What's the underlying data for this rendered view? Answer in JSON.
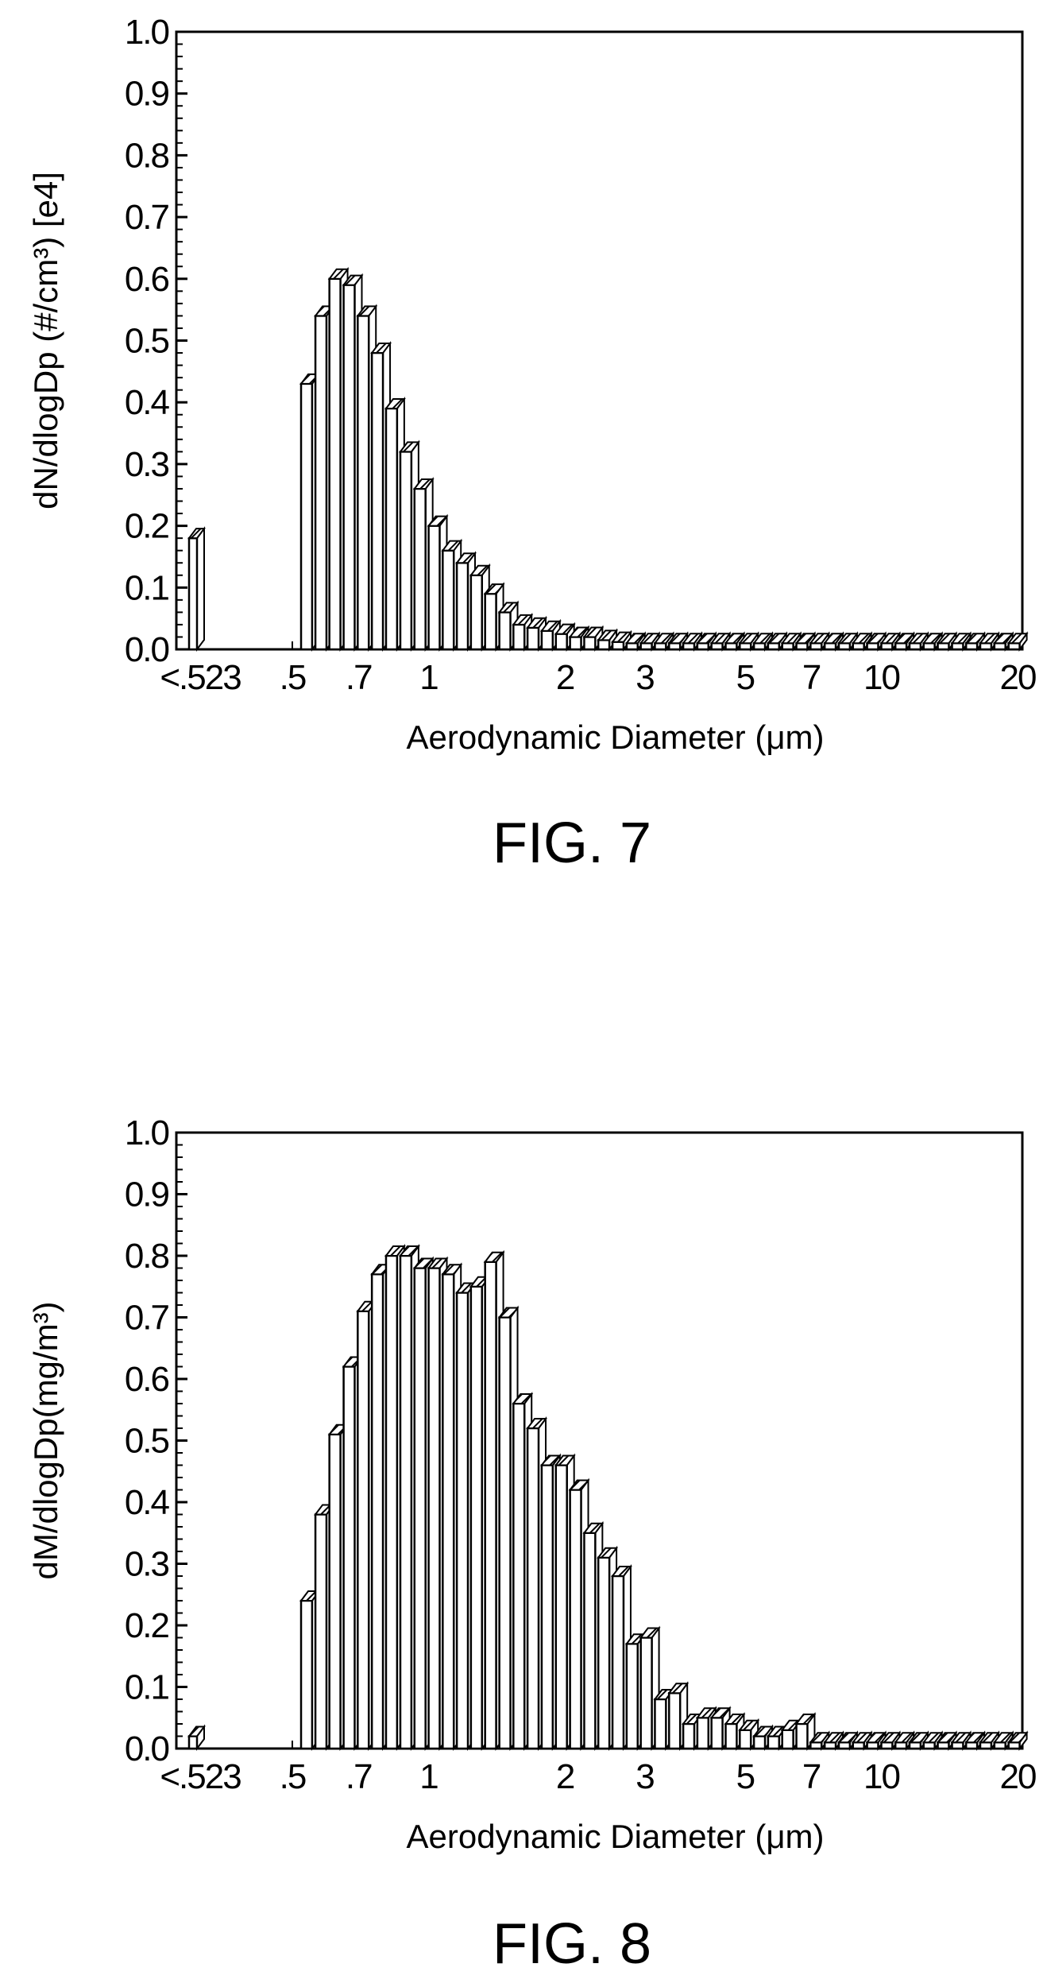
{
  "chart_data": [
    {
      "type": "bar",
      "figure_label": "FIG. 7",
      "title": "",
      "xlabel": "Aerodynamic Diameter (μm)",
      "ylabel": "dN/dlogDp (#/cm³) [e4]",
      "x_scale": "log",
      "xlim": [
        0.5,
        20
      ],
      "ylim": [
        0,
        1.0
      ],
      "y_ticks": [
        "0.0",
        "0.1",
        "0.2",
        "0.3",
        "0.4",
        "0.5",
        "0.6",
        "0.7",
        "0.8",
        "0.9",
        "1.0"
      ],
      "x_ticks": [
        {
          "label": "<.523",
          "value": null
        },
        {
          "label": ".5",
          "value": 0.5
        },
        {
          "label": ".7",
          "value": 0.7
        },
        {
          "label": "1",
          "value": 1
        },
        {
          "label": "2",
          "value": 2
        },
        {
          "label": "3",
          "value": 3
        },
        {
          "label": "5",
          "value": 5
        },
        {
          "label": "7",
          "value": 7
        },
        {
          "label": "10",
          "value": 10
        },
        {
          "label": "20",
          "value": 20
        }
      ],
      "underflow_bin": {
        "label": "<.523",
        "value": 0.18
      },
      "x": [
        0.542,
        0.583,
        0.626,
        0.673,
        0.723,
        0.777,
        0.835,
        0.898,
        0.965,
        1.037,
        1.114,
        1.197,
        1.286,
        1.382,
        1.486,
        1.596,
        1.715,
        1.843,
        1.981,
        2.129,
        2.288,
        2.458,
        2.642,
        2.839,
        3.051,
        3.278,
        3.523,
        3.786,
        4.068,
        4.371,
        4.698,
        5.048,
        5.425,
        5.829,
        6.264,
        6.732,
        7.234,
        7.774,
        8.354,
        8.977,
        9.647,
        10.37,
        11.14,
        11.97,
        12.86,
        13.82,
        14.86,
        15.96,
        17.15,
        18.43,
        19.81
      ],
      "values": [
        0.43,
        0.54,
        0.6,
        0.59,
        0.54,
        0.48,
        0.39,
        0.32,
        0.26,
        0.2,
        0.16,
        0.14,
        0.12,
        0.09,
        0.06,
        0.04,
        0.035,
        0.03,
        0.025,
        0.02,
        0.02,
        0.015,
        0.012,
        0.01,
        0.01,
        0.01,
        0.01,
        0.01,
        0.01,
        0.01,
        0.01,
        0.01,
        0.01,
        0.01,
        0.01,
        0.01,
        0.01,
        0.01,
        0.01,
        0.01,
        0.01,
        0.01,
        0.01,
        0.01,
        0.01,
        0.01,
        0.01,
        0.01,
        0.01,
        0.01,
        0.01
      ]
    },
    {
      "type": "bar",
      "figure_label": "FIG. 8",
      "title": "",
      "xlabel": "Aerodynamic Diameter (μm)",
      "ylabel": "dM/dlogDp(mg/m³)",
      "x_scale": "log",
      "xlim": [
        0.5,
        20
      ],
      "ylim": [
        0,
        1.0
      ],
      "y_ticks": [
        "0.0",
        "0.1",
        "0.2",
        "0.3",
        "0.4",
        "0.5",
        "0.6",
        "0.7",
        "0.8",
        "0.9",
        "1.0"
      ],
      "x_ticks": [
        {
          "label": "<.523",
          "value": null
        },
        {
          "label": ".5",
          "value": 0.5
        },
        {
          "label": ".7",
          "value": 0.7
        },
        {
          "label": "1",
          "value": 1
        },
        {
          "label": "2",
          "value": 2
        },
        {
          "label": "3",
          "value": 3
        },
        {
          "label": "5",
          "value": 5
        },
        {
          "label": "7",
          "value": 7
        },
        {
          "label": "10",
          "value": 10
        },
        {
          "label": "20",
          "value": 20
        }
      ],
      "underflow_bin": {
        "label": "<.523",
        "value": 0.02
      },
      "x": [
        0.542,
        0.583,
        0.626,
        0.673,
        0.723,
        0.777,
        0.835,
        0.898,
        0.965,
        1.037,
        1.114,
        1.197,
        1.286,
        1.382,
        1.486,
        1.596,
        1.715,
        1.843,
        1.981,
        2.129,
        2.288,
        2.458,
        2.642,
        2.839,
        3.051,
        3.278,
        3.523,
        3.786,
        4.068,
        4.371,
        4.698,
        5.048,
        5.425,
        5.829,
        6.264,
        6.732,
        7.234,
        7.774,
        8.354,
        8.977,
        9.647,
        10.37,
        11.14,
        11.97,
        12.86,
        13.82,
        14.86,
        15.96,
        17.15,
        18.43,
        19.81
      ],
      "values": [
        0.24,
        0.38,
        0.51,
        0.62,
        0.71,
        0.77,
        0.8,
        0.8,
        0.78,
        0.78,
        0.77,
        0.74,
        0.75,
        0.79,
        0.7,
        0.56,
        0.52,
        0.46,
        0.46,
        0.42,
        0.35,
        0.31,
        0.28,
        0.17,
        0.18,
        0.08,
        0.09,
        0.04,
        0.05,
        0.05,
        0.04,
        0.03,
        0.02,
        0.02,
        0.03,
        0.04,
        0.01,
        0.01,
        0.01,
        0.01,
        0.01,
        0.01,
        0.01,
        0.01,
        0.01,
        0.01,
        0.01,
        0.01,
        0.01,
        0.01,
        0.01
      ]
    }
  ]
}
